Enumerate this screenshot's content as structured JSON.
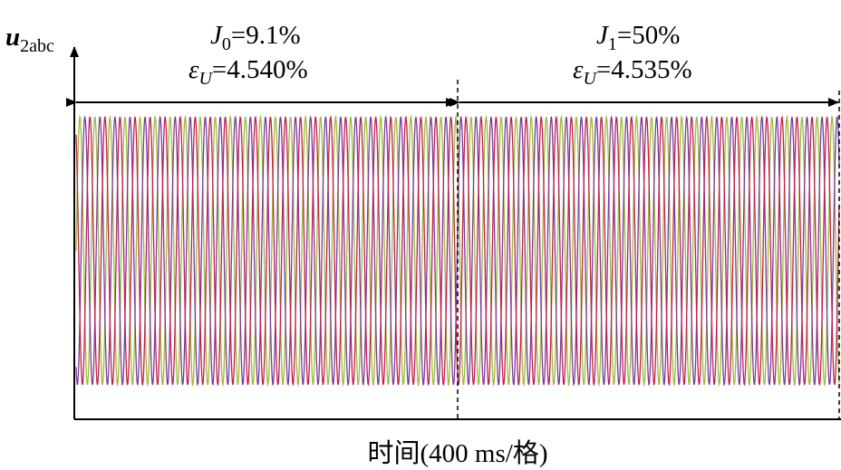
{
  "y_axis_label": {
    "symbol": "u",
    "subscript": "2abc"
  },
  "annotations": [
    {
      "line1": {
        "symbol": "J",
        "subscript": "0",
        "text": "=9.1%"
      },
      "line2": {
        "symbol": "ε",
        "subscript": "U",
        "text": "=4.540%"
      }
    },
    {
      "line1": {
        "symbol": "J",
        "subscript": "1",
        "text": "=50%"
      },
      "line2": {
        "symbol": "ε",
        "subscript": "U",
        "text": "=4.535%"
      }
    }
  ],
  "x_axis_label": "时间(400 ms/格)"
}
